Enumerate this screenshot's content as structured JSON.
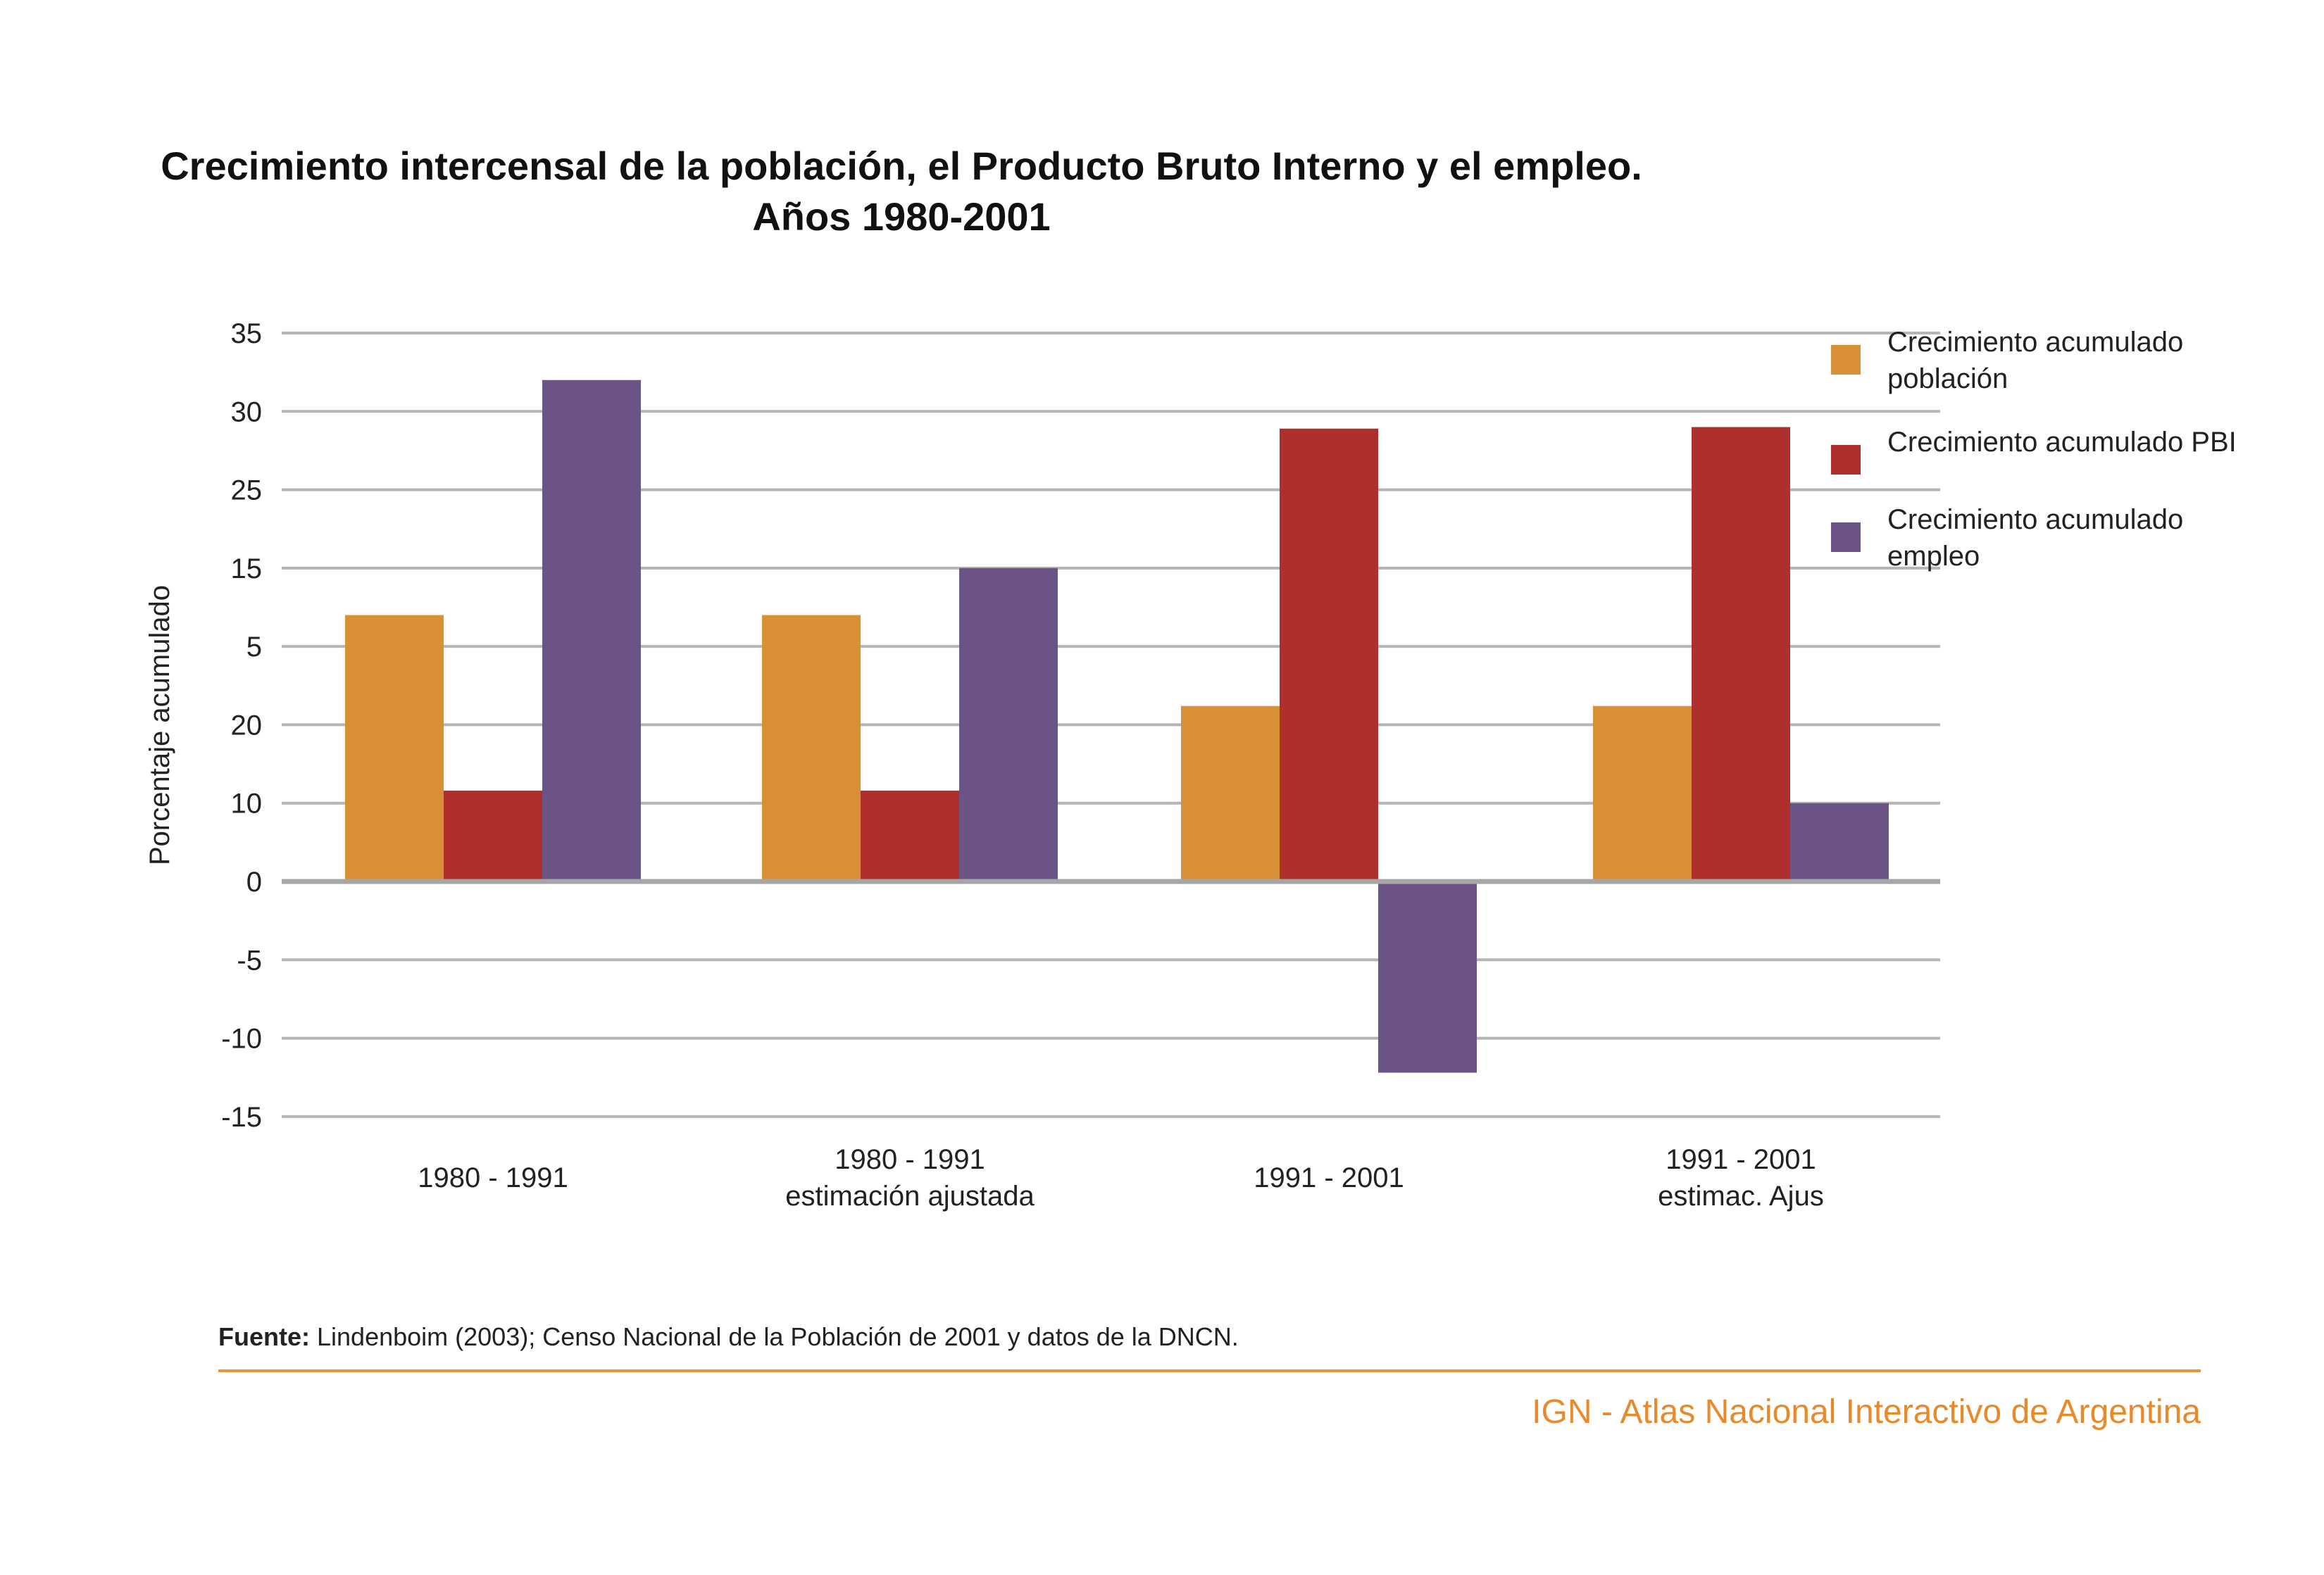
{
  "title_line1": "Crecimiento intercensal de la población, el Producto Bruto Interno y el empleo.",
  "title_line2": "Años 1980-2001",
  "source_label": "Fuente:",
  "source_text": " Lindenboim (2003); Censo Nacional de la Población de 2001 y datos de la DNCN.",
  "credit": "IGN - Atlas Nacional Interactivo de Argentina",
  "colors": {
    "poblacion": "#d88f35",
    "pbi": "#ae2f2c",
    "empleo": "#6b5485",
    "grid": "#b5b5b5",
    "zero": "#a6a6a6",
    "accent": "#e8892a"
  },
  "chart_data": {
    "type": "bar",
    "ylabel": "Porcentaje acumulado",
    "xlabel": "",
    "tick_labels": [
      "35",
      "30",
      "25",
      "15",
      "5",
      "20",
      "10",
      "0",
      "-5",
      "-10",
      "-15"
    ],
    "ylim": [
      -15,
      35
    ],
    "grid": true,
    "legend_position": "right",
    "categories": [
      [
        "1980 - 1991"
      ],
      [
        "1980 - 1991",
        "estimación ajustada"
      ],
      [
        "1991 - 2001"
      ],
      [
        "1991 - 2001",
        "estimac. Ajus"
      ]
    ],
    "series": [
      {
        "name": "Crecimiento acumulado población",
        "color": "#d88f35",
        "values": [
          17,
          17,
          11.2,
          11.2
        ]
      },
      {
        "name": "Crecimiento acumulado PBI",
        "color": "#ae2f2c",
        "values": [
          5.8,
          5.8,
          28.9,
          29
        ]
      },
      {
        "name": "Crecimiento acumulado empleo",
        "color": "#6b5485",
        "values": [
          32,
          20,
          -12.2,
          5
        ]
      }
    ]
  }
}
